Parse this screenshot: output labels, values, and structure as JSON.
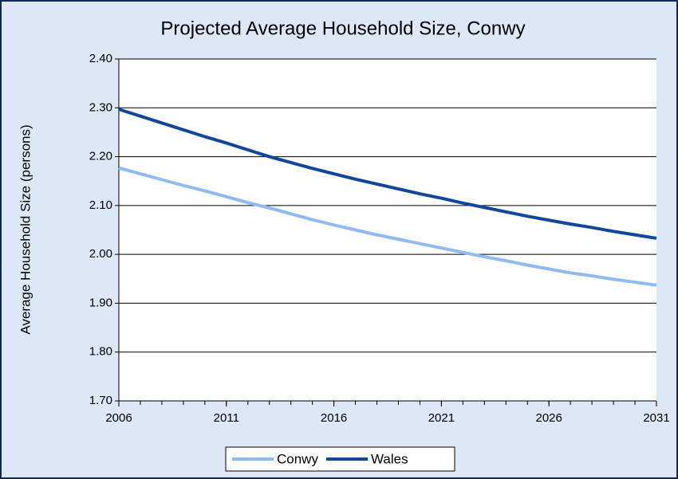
{
  "chart_data": {
    "type": "line",
    "title": "Projected Average Household Size, Conwy",
    "y_label": "Average Household Size (persons)",
    "x": [
      2006,
      2007,
      2008,
      2009,
      2010,
      2011,
      2012,
      2013,
      2014,
      2015,
      2016,
      2017,
      2018,
      2019,
      2020,
      2021,
      2022,
      2023,
      2024,
      2025,
      2026,
      2027,
      2028,
      2029,
      2030,
      2031
    ],
    "series": [
      {
        "name": "Conwy",
        "color": "#8fbcf0",
        "values": [
          2.177,
          2.165,
          2.153,
          2.141,
          2.13,
          2.118,
          2.106,
          2.095,
          2.083,
          2.071,
          2.06,
          2.05,
          2.04,
          2.031,
          2.022,
          2.013,
          2.004,
          1.995,
          1.987,
          1.978,
          1.97,
          1.962,
          1.956,
          1.949,
          1.943,
          1.937
        ]
      },
      {
        "name": "Wales",
        "color": "#11479b",
        "values": [
          2.297,
          2.283,
          2.269,
          2.255,
          2.241,
          2.228,
          2.214,
          2.2,
          2.188,
          2.176,
          2.165,
          2.154,
          2.144,
          2.134,
          2.124,
          2.115,
          2.105,
          2.096,
          2.087,
          2.078,
          2.07,
          2.062,
          2.055,
          2.047,
          2.04,
          2.033
        ]
      }
    ],
    "xlim": [
      2006,
      2031
    ],
    "xticks": [
      2006,
      2011,
      2016,
      2021,
      2026,
      2031
    ],
    "ylim": [
      1.7,
      2.4
    ],
    "yticks": [
      {
        "value": 1.7,
        "label": "1.70"
      },
      {
        "value": 1.8,
        "label": "1.80"
      },
      {
        "value": 1.9,
        "label": "1.90"
      },
      {
        "value": 2,
        "label": "2.00"
      },
      {
        "value": 2.1,
        "label": "2.10"
      },
      {
        "value": 2.2,
        "label": "2.20"
      },
      {
        "value": 2.3,
        "label": "2.30"
      },
      {
        "value": 2.4,
        "label": "2.40"
      }
    ],
    "grid": true,
    "legend": "bottom"
  }
}
